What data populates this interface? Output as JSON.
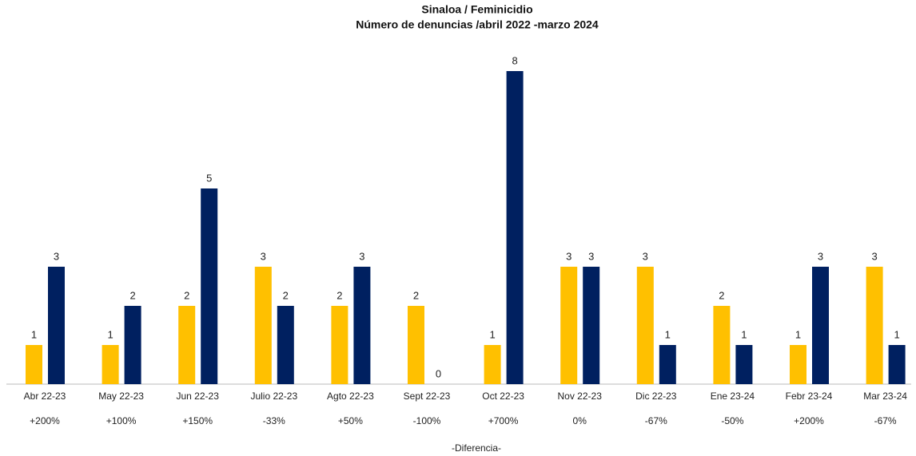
{
  "chart_data": {
    "type": "bar",
    "title": "Sinaloa / Feminicidio",
    "subtitle": "Número de denuncias /abril 2022 -marzo 2024",
    "x_label": "-Diferencia-",
    "categories": [
      "Abr 22-23",
      "May 22-23",
      "Jun 22-23",
      "Julio 22-23",
      "Agto 22-23",
      "Sept 22-23",
      "Oct 22-23",
      "Nov 22-23",
      "Dic 22-23",
      "Ene 23-24",
      "Febr 23-24",
      "Mar 23-24"
    ],
    "series": [
      {
        "color": "#FFC000",
        "values": [
          1,
          1,
          2,
          3,
          2,
          2,
          1,
          3,
          3,
          2,
          1,
          3
        ]
      },
      {
        "color": "#002060",
        "values": [
          3,
          2,
          5,
          2,
          3,
          0,
          8,
          3,
          1,
          1,
          3,
          1
        ]
      }
    ],
    "annotations": [
      "+200%",
      "+100%",
      "+150%",
      "-33%",
      "+50%",
      "-100%",
      "+700%",
      "0%",
      "-67%",
      "-50%",
      "+200%",
      "-67%"
    ],
    "ylim": [
      0,
      8
    ]
  }
}
